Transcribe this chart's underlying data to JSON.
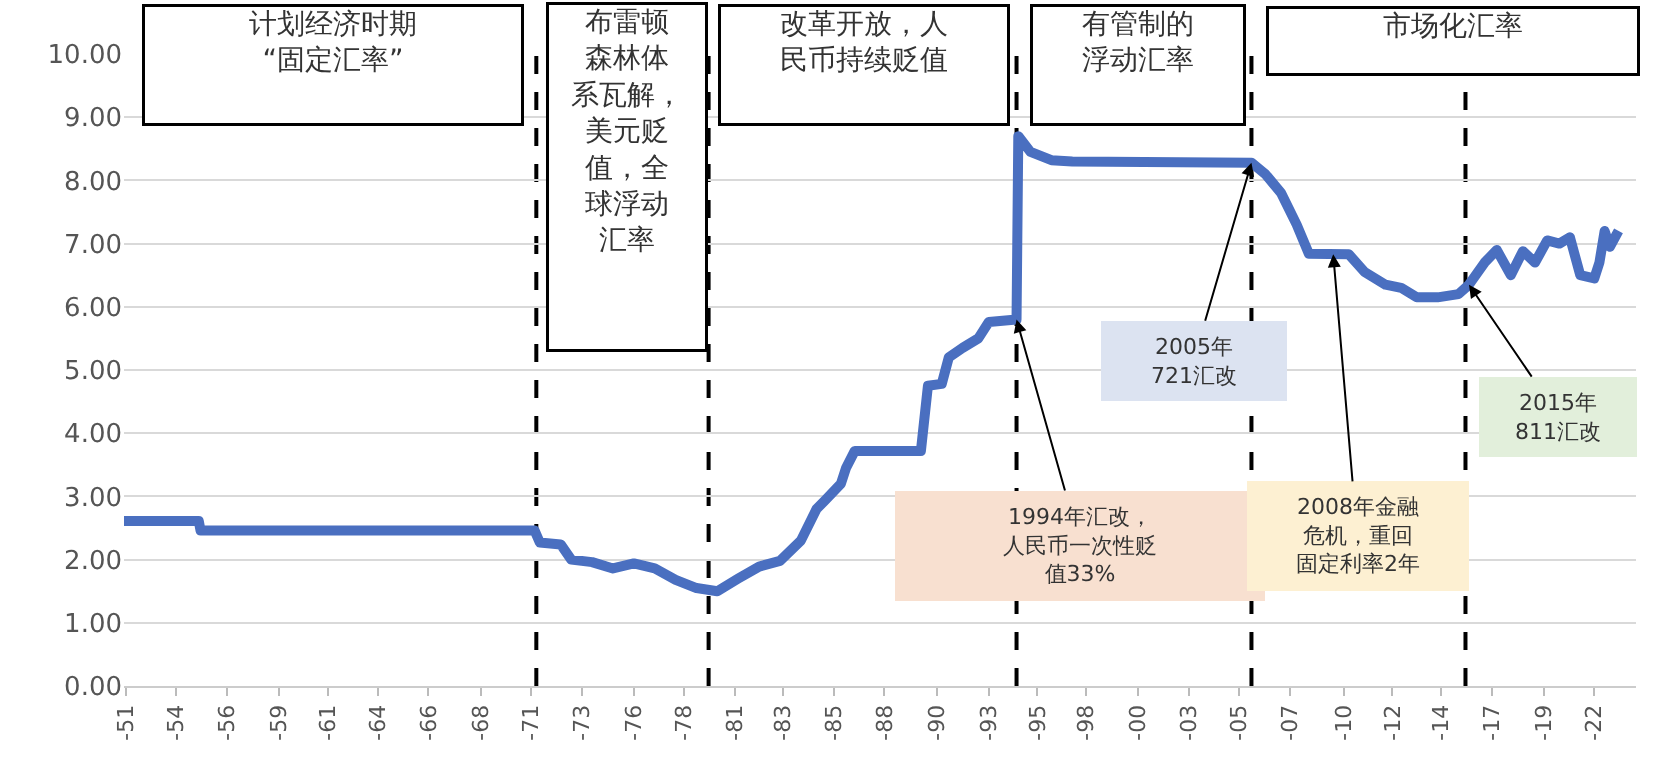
{
  "chart_data": {
    "type": "line",
    "x": [
      "1951-08",
      "1955-03",
      "1955-04",
      "1971-04",
      "1971-07",
      "1972-07",
      "1973-01",
      "1974-01",
      "1975-01",
      "1976-01",
      "1977-01",
      "1978-01",
      "1979-01",
      "1980-01",
      "1981-01",
      "1982-01",
      "1983-01",
      "1984-01",
      "1984-10",
      "1985-03",
      "1985-12",
      "1986-03",
      "1986-08",
      "1989-10",
      "1990-02",
      "1990-10",
      "1991-02",
      "1991-10",
      "1992-07",
      "1993-01",
      "1994-05",
      "1994-06",
      "1995-01",
      "1996-01",
      "1997-01",
      "2005-08",
      "2006-04",
      "2007-01",
      "2007-10",
      "2008-05",
      "2010-04",
      "2011-01",
      "2012-01",
      "2012-10",
      "2013-07",
      "2014-07",
      "2015-07",
      "2016-01",
      "2016-10",
      "2017-05",
      "2018-01",
      "2018-08",
      "2019-03",
      "2019-10",
      "2020-05",
      "2020-11",
      "2021-05",
      "2022-01",
      "2022-04",
      "2022-07",
      "2022-10",
      "2023-03"
    ],
    "series": [
      {
        "color": "#4a6fc0",
        "values": [
          2.61,
          2.61,
          2.46,
          2.46,
          2.27,
          2.24,
          2.0,
          1.96,
          1.86,
          1.94,
          1.86,
          1.68,
          1.55,
          1.5,
          1.7,
          1.89,
          1.98,
          2.3,
          2.8,
          2.94,
          3.2,
          3.45,
          3.72,
          3.72,
          4.75,
          4.78,
          5.2,
          5.35,
          5.5,
          5.76,
          5.8,
          8.7,
          8.45,
          8.32,
          8.3,
          8.28,
          8.1,
          7.8,
          7.3,
          6.84,
          6.83,
          6.55,
          6.35,
          6.3,
          6.15,
          6.15,
          6.2,
          6.35,
          6.7,
          6.9,
          6.5,
          6.88,
          6.7,
          7.05,
          7.0,
          7.1,
          6.5,
          6.45,
          6.7,
          7.2,
          6.95,
          7.2
        ]
      }
    ],
    "xlim": [
      "1951-08",
      "2024-01"
    ],
    "xticks": [
      {
        "value": "1951-09",
        "label": "-51"
      },
      {
        "value": "1954-02",
        "label": "-54"
      },
      {
        "value": "1956-07",
        "label": "-56"
      },
      {
        "value": "1959-01",
        "label": "-59"
      },
      {
        "value": "1961-05",
        "label": "-61"
      },
      {
        "value": "1963-10",
        "label": "-64"
      },
      {
        "value": "1966-03",
        "label": "-66"
      },
      {
        "value": "1968-09",
        "label": "-68"
      },
      {
        "value": "1971-02",
        "label": "-71"
      },
      {
        "value": "1973-07",
        "label": "-73"
      },
      {
        "value": "1976-01",
        "label": "-76"
      },
      {
        "value": "1978-06",
        "label": "-78"
      },
      {
        "value": "1980-11",
        "label": "-81"
      },
      {
        "value": "1983-03",
        "label": "-83"
      },
      {
        "value": "1985-08",
        "label": "-85"
      },
      {
        "value": "1988-01",
        "label": "-88"
      },
      {
        "value": "1990-07",
        "label": "-90"
      },
      {
        "value": "1993-01",
        "label": "-93"
      },
      {
        "value": "1995-05",
        "label": "-95"
      },
      {
        "value": "1997-09",
        "label": "-98"
      },
      {
        "value": "2000-03",
        "label": "-00"
      },
      {
        "value": "2002-08",
        "label": "-03"
      },
      {
        "value": "2005-01",
        "label": "-05"
      },
      {
        "value": "2007-06",
        "label": "-07"
      },
      {
        "value": "2010-01",
        "label": "-10"
      },
      {
        "value": "2012-05",
        "label": "-12"
      },
      {
        "value": "2014-09",
        "label": "-14"
      },
      {
        "value": "2017-02",
        "label": "-17"
      },
      {
        "value": "2019-08",
        "label": "-19"
      },
      {
        "value": "2022-01",
        "label": "-22"
      }
    ],
    "ylim": [
      0,
      10
    ],
    "yticks": [
      {
        "value": 0,
        "label": "0.00"
      },
      {
        "value": 1,
        "label": "1.00"
      },
      {
        "value": 2,
        "label": "2.00"
      },
      {
        "value": 3,
        "label": "3.00"
      },
      {
        "value": 4,
        "label": "4.00"
      },
      {
        "value": 5,
        "label": "5.00"
      },
      {
        "value": 6,
        "label": "6.00"
      },
      {
        "value": 7,
        "label": "7.00"
      },
      {
        "value": 8,
        "label": "8.00"
      },
      {
        "value": 9,
        "label": "9.00"
      },
      {
        "value": 10,
        "label": "10.00"
      }
    ],
    "grid": "y",
    "marker": "none",
    "line_style": "solid",
    "ref_lines": [
      {
        "axis": "x",
        "value": "1971-05",
        "color": "#000000",
        "line_style": "dashed"
      },
      {
        "axis": "x",
        "value": "1979-08",
        "color": "#000000",
        "line_style": "dashed"
      },
      {
        "axis": "x",
        "value": "1994-05",
        "color": "#000000",
        "line_style": "dashed"
      },
      {
        "axis": "x",
        "value": "2005-08",
        "color": "#000000",
        "line_style": "dashed"
      },
      {
        "axis": "x",
        "value": "2015-11",
        "color": "#000000",
        "line_style": "dashed"
      }
    ],
    "annotations": [
      "计划经济时期“固定汇率”",
      "布雷顿森林体系瓦解，美元贬值，全球浮动汇率",
      "改革开放，人民币持续贬值",
      "有管制的浮动汇率",
      "市场化汇率",
      {
        "text": "1994年汇改，人民币一次性贬值33%",
        "x": "1994-05",
        "y": 5.8
      },
      {
        "text": "2005年721汇改",
        "x": "2005-08",
        "y": 8.28
      },
      {
        "text": "2008年金融危机，重回固定利率2年",
        "x": "2009-07",
        "y": 6.83
      },
      {
        "text": "2015年811汇改",
        "x": "2016-01",
        "y": 6.35
      }
    ]
  }
}
